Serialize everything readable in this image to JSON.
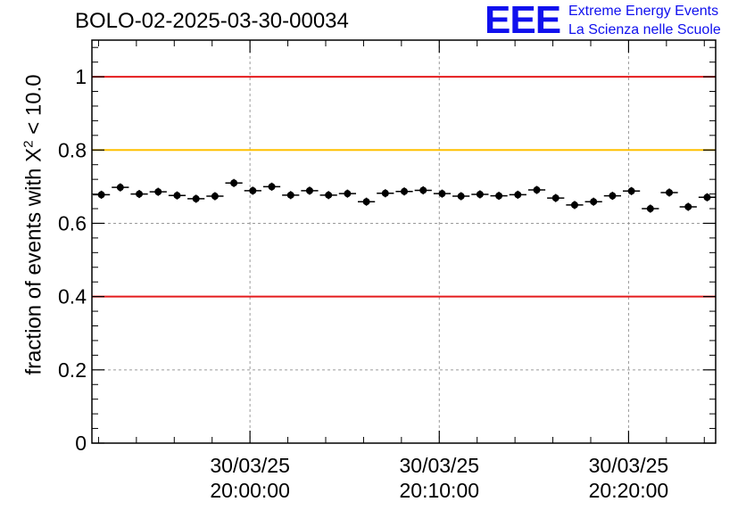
{
  "header": {
    "run_id": "BOLO-02-2025-03-30-00034",
    "logo_letters": "EEE",
    "logo_line1": "Extreme Energy Events",
    "logo_line2": "La Scienza nelle Scuole",
    "brand_color": "#1010ee"
  },
  "chart_data": {
    "type": "scatter",
    "title": "BOLO-02-2025-03-30-00034",
    "ylabel_parts": {
      "prefix": "fraction of events with ",
      "symbol": "X",
      "exponent": "2",
      "suffix": " < 10.0"
    },
    "xlabel": "",
    "ylim": [
      0,
      1.1
    ],
    "yticks": [
      0,
      0.2,
      0.4,
      0.6,
      0.8,
      1
    ],
    "ytick_labels": [
      "0",
      "0.2",
      "0.4",
      "0.6",
      "0.8",
      "1"
    ],
    "xlim_minutes": [
      -8.35,
      24.6
    ],
    "xticks": [
      {
        "minute": 0,
        "date": "30/03/25",
        "time": "20:00:00"
      },
      {
        "minute": 10,
        "date": "30/03/25",
        "time": "20:10:00"
      },
      {
        "minute": 20,
        "date": "30/03/25",
        "time": "20:20:00"
      }
    ],
    "grid": true,
    "reference_lines": [
      {
        "y": 1.0,
        "color": "#e41a1c"
      },
      {
        "y": 0.8,
        "color": "#ffc000"
      },
      {
        "y": 0.4,
        "color": "#e41a1c"
      }
    ],
    "bin_width_minutes": 1,
    "x_start_minutes": -8.35,
    "series": [
      {
        "name": "fraction",
        "color": "#000000",
        "values": [
          0.678,
          0.698,
          0.68,
          0.686,
          0.676,
          0.667,
          0.674,
          0.71,
          0.689,
          0.7,
          0.677,
          0.689,
          0.677,
          0.681,
          0.659,
          0.682,
          0.687,
          0.69,
          0.681,
          0.674,
          0.679,
          0.675,
          0.678,
          0.691,
          0.669,
          0.65,
          0.659,
          0.675,
          0.688,
          0.64,
          0.684,
          0.645,
          0.671
        ],
        "errors": [
          0.011,
          0.011,
          0.011,
          0.011,
          0.011,
          0.011,
          0.011,
          0.011,
          0.011,
          0.011,
          0.011,
          0.011,
          0.011,
          0.011,
          0.011,
          0.011,
          0.011,
          0.011,
          0.011,
          0.011,
          0.011,
          0.011,
          0.011,
          0.011,
          0.011,
          0.011,
          0.011,
          0.011,
          0.011,
          0.011,
          0.011,
          0.011,
          0.011
        ]
      }
    ]
  }
}
